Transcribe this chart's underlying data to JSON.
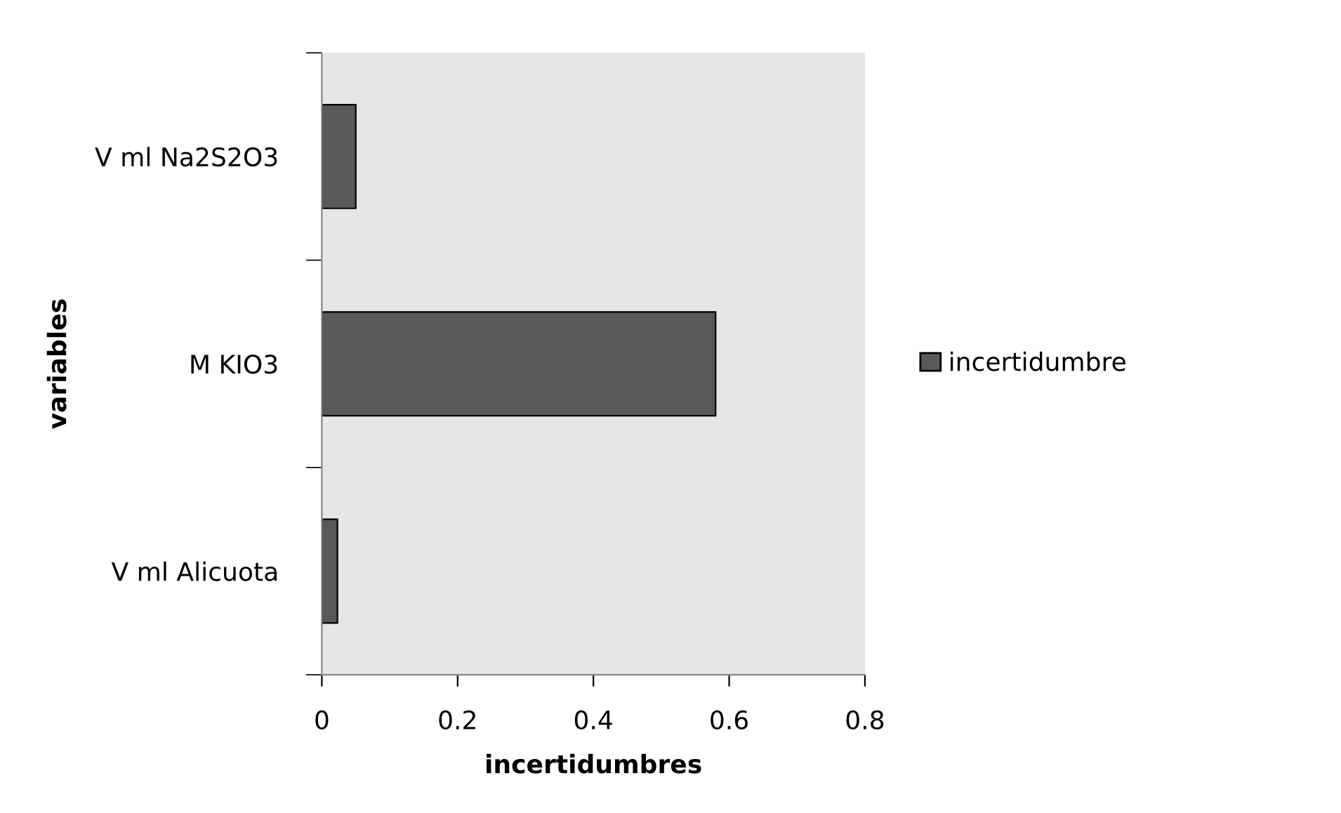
{
  "chart_data": {
    "type": "bar",
    "orientation": "horizontal",
    "xlabel": "incertidumbres",
    "ylabel": "variables",
    "categories": [
      "V ml Na2S2O3",
      "M KIO3",
      "V ml Alicuota"
    ],
    "series": [
      {
        "name": "incertidumbre",
        "color": "#595959",
        "values": [
          0.05,
          0.58,
          0.023
        ]
      }
    ],
    "xlim": [
      0,
      0.8
    ],
    "xticks": [
      0,
      0.2,
      0.4,
      0.6,
      0.8
    ],
    "grid": false,
    "legend": "right"
  }
}
